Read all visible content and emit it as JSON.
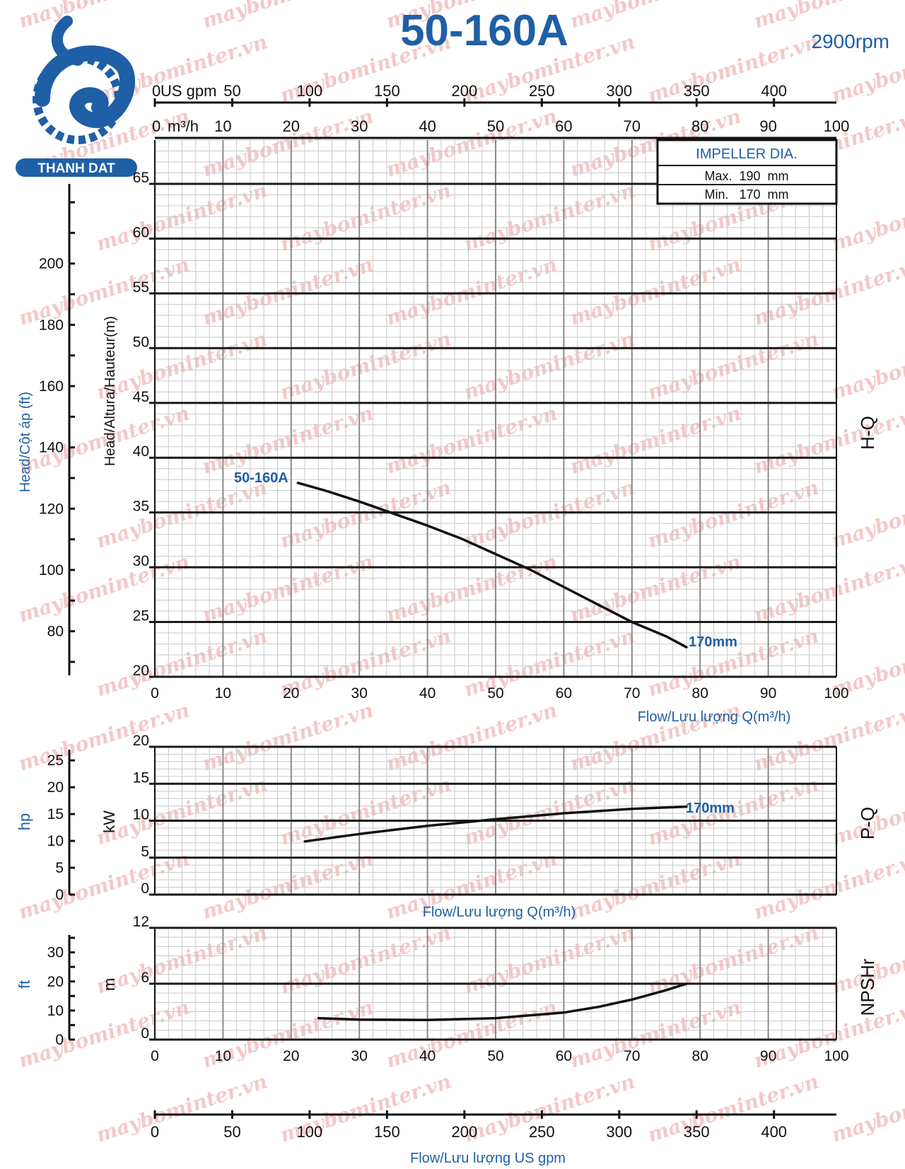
{
  "header": {
    "model": "50-160A",
    "speed": "2900rpm",
    "logo_text": "THANH DAT"
  },
  "watermark": "maybominter.vn",
  "colors": {
    "brand_blue": "#1f5fa6",
    "curve": "#111111",
    "grid_major": "#1a1a1a",
    "grid_minor": "#c8c8c8"
  },
  "impeller": {
    "title": "IMPELLER DIA.",
    "max": "Max.  190  mm",
    "min": "Min.   170  mm"
  },
  "top_axes": {
    "gpm_label": "US gpm",
    "m3h_label": "m³/h"
  },
  "labels": {
    "head_m": "Head/Altura/Hauteur(m)",
    "head_ft": "Head/Cột áp (ft)",
    "flow_m3h": "Flow/Lưu lượng Q(m³/h)",
    "flow_gpm": "Flow/Lưu lượng US gpm",
    "power_kw": "kW",
    "power_hp": "hp",
    "npsh_m": "m",
    "npsh_ft": "ft",
    "hq": "H-Q",
    "pq": "P-Q",
    "npsh": "NPSHr",
    "curve_model": "50-160A",
    "curve_dia_hq": "170mm",
    "curve_dia_pq": "170mm"
  },
  "chart_data": [
    {
      "type": "line",
      "title": "H-Q",
      "xlabel": "Flow/Lưu lượng Q(m³/h)",
      "ylabel": "Head/Altura/Hauteur(m)",
      "xlim": [
        0,
        100
      ],
      "ylim": [
        20,
        69
      ],
      "x_ticks": [
        0,
        10,
        20,
        30,
        40,
        50,
        60,
        70,
        80,
        90,
        100
      ],
      "y_ticks": [
        20,
        25,
        30,
        35,
        40,
        45,
        50,
        55,
        60,
        65
      ],
      "secondary_y": {
        "label": "Head/Cột áp (ft)",
        "ticks": [
          80,
          100,
          120,
          140,
          160,
          180,
          200
        ]
      },
      "top_axis_m3h_ticks": [
        0,
        10,
        20,
        30,
        40,
        50,
        60,
        70,
        80,
        90,
        100
      ],
      "top_axis_gpm_ticks": [
        0,
        50,
        100,
        150,
        200,
        250,
        300,
        350,
        400
      ],
      "grid": true,
      "series": [
        {
          "name": "170mm",
          "x": [
            21,
            25,
            30,
            35,
            40,
            45,
            50,
            55,
            60,
            65,
            70,
            75,
            78
          ],
          "y": [
            37.7,
            37.0,
            36.0,
            34.9,
            33.8,
            32.6,
            31.2,
            29.8,
            28.2,
            26.6,
            25.0,
            23.7,
            22.7
          ]
        }
      ]
    },
    {
      "type": "line",
      "title": "P-Q",
      "xlabel": "Flow/Lưu lượng Q(m³/h)",
      "ylabel": "kW",
      "xlim": [
        0,
        100
      ],
      "ylim": [
        0,
        20
      ],
      "y_ticks": [
        0,
        5,
        10,
        15,
        20
      ],
      "secondary_y": {
        "label": "hp",
        "ticks": [
          0,
          5,
          10,
          15,
          20,
          25
        ]
      },
      "grid": true,
      "series": [
        {
          "name": "170mm",
          "x": [
            22,
            30,
            40,
            50,
            60,
            70,
            78
          ],
          "y": [
            7.2,
            8.2,
            9.3,
            10.2,
            11.0,
            11.6,
            11.9
          ]
        }
      ]
    },
    {
      "type": "line",
      "title": "NPSHr",
      "xlabel": "Flow/Lưu lượng US gpm",
      "ylabel": "m",
      "xlim": [
        0,
        100
      ],
      "ylim": [
        0,
        12
      ],
      "y_ticks": [
        0,
        6,
        12
      ],
      "secondary_y": {
        "label": "ft",
        "ticks": [
          0,
          10,
          20,
          30
        ]
      },
      "bottom_gpm_ticks": [
        0,
        50,
        100,
        150,
        200,
        250,
        300,
        350,
        400
      ],
      "grid": true,
      "series": [
        {
          "name": "NPSHr",
          "x": [
            24,
            30,
            40,
            50,
            60,
            65,
            70,
            75,
            78
          ],
          "y": [
            2.3,
            2.15,
            2.1,
            2.3,
            2.9,
            3.5,
            4.3,
            5.3,
            6.0
          ]
        }
      ]
    }
  ]
}
